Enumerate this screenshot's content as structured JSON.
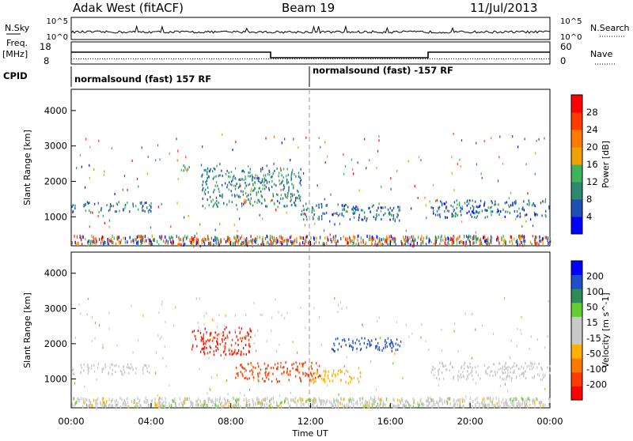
{
  "header": {
    "radar": "Adak West (fitACF)",
    "beam": "Beam 19",
    "date": "11/Jul/2013"
  },
  "top_panels": {
    "nsky_label": "N.Sky",
    "nsearch_label": "N.Search",
    "nsky_ticks": [
      "10^5",
      "10^0"
    ],
    "freq_label_line1": "Freq.",
    "freq_label_line2": "[MHz]",
    "freq_ticks": [
      "18",
      "8"
    ],
    "nave_label": "Nave",
    "nave_ticks": [
      "60",
      "0"
    ],
    "cpid_label": "CPID",
    "cpid_segments": [
      "normalsound (fast) 157 RF",
      "normalsound (fast) -157 RF"
    ]
  },
  "x_axis": {
    "label": "Time UT",
    "ticks": [
      "00:00",
      "04:00",
      "08:00",
      "12:00",
      "16:00",
      "20:00",
      "00:00"
    ]
  },
  "colors": {
    "power_scale": [
      "#0000ff",
      "#1e4fb4",
      "#2e8a6e",
      "#3fb35a",
      "#f0a000",
      "#ff7a00",
      "#ff3c00",
      "#ff0000"
    ],
    "velocity_scale": [
      "#0000ff",
      "#1e50c8",
      "#2e8b57",
      "#66cc33",
      "#c8c8c8",
      "#c8c8c8",
      "#ffb000",
      "#ff7800",
      "#ff3c00",
      "#ff0000"
    ]
  },
  "chart_data": [
    {
      "type": "heatmap",
      "panel": "power",
      "xlabel": "Time UT",
      "ylabel": "Slant Range [km]",
      "xlim": [
        0,
        24
      ],
      "ylim": [
        180,
        4600
      ],
      "yticks": [
        1000,
        2000,
        3000,
        4000
      ],
      "colorbar": {
        "label": "Power [dB]",
        "ticks": [
          "4",
          "8",
          "12",
          "16",
          "20",
          "24",
          "28"
        ],
        "range": [
          0,
          30
        ]
      },
      "echo_regions": [
        {
          "t0": 0.0,
          "t1": 4.0,
          "r0": 1150,
          "r1": 1450,
          "value": 8
        },
        {
          "t0": 5.5,
          "t1": 6.2,
          "r0": 2300,
          "r1": 2500,
          "value": 13
        },
        {
          "t0": 6.5,
          "t1": 11.5,
          "r0": 1300,
          "r1": 2400,
          "value": 9
        },
        {
          "t0": 8.6,
          "t1": 9.0,
          "r0": 1350,
          "r1": 1550,
          "value": 20
        },
        {
          "t0": 11.5,
          "t1": 16.5,
          "r0": 900,
          "r1": 1400,
          "value": 8
        },
        {
          "t0": 18.0,
          "t1": 24.0,
          "r0": 1000,
          "r1": 1500,
          "value": 7
        }
      ]
    },
    {
      "type": "heatmap",
      "panel": "velocity",
      "xlabel": "Time UT",
      "ylabel": "Slant Range [km]",
      "xlim": [
        0,
        24
      ],
      "ylim": [
        180,
        4600
      ],
      "yticks": [
        1000,
        2000,
        3000,
        4000
      ],
      "colorbar": {
        "label": "Velocity [m s^-1]",
        "ticks": [
          "200",
          "100",
          "50",
          "15",
          "-15",
          "-50",
          "-100",
          "-200"
        ],
        "range": [
          -250,
          250
        ]
      },
      "echo_regions": [
        {
          "t0": 0.0,
          "t1": 4.0,
          "r0": 1150,
          "r1": 1450,
          "value": 0
        },
        {
          "t0": 6.0,
          "t1": 9.0,
          "r0": 1700,
          "r1": 2500,
          "value": -200
        },
        {
          "t0": 8.2,
          "t1": 12.5,
          "r0": 950,
          "r1": 1500,
          "value": -180
        },
        {
          "t0": 12.0,
          "t1": 14.5,
          "r0": 900,
          "r1": 1300,
          "value": -80
        },
        {
          "t0": 13.0,
          "t1": 16.5,
          "r0": 1800,
          "r1": 2200,
          "value": 190
        },
        {
          "t0": 18.0,
          "t1": 24.0,
          "r0": 1000,
          "r1": 1500,
          "value": 0
        }
      ]
    }
  ]
}
